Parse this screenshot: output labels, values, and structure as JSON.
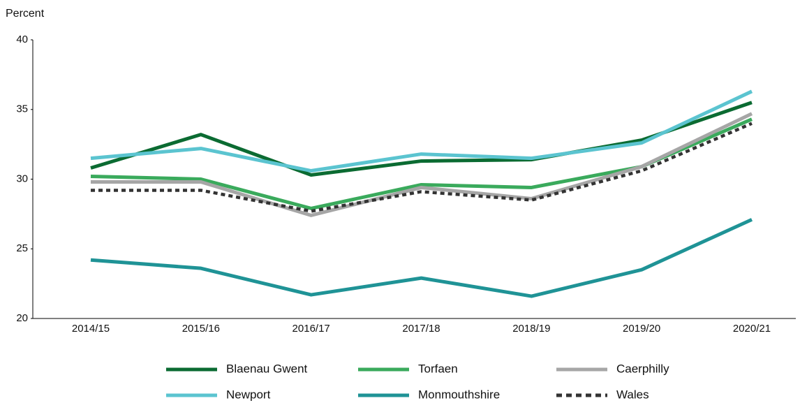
{
  "chart_data": {
    "type": "line",
    "y_label": "Percent",
    "categories": [
      "2014/15",
      "2015/16",
      "2016/17",
      "2017/18",
      "2018/19",
      "2019/20",
      "2020/21"
    ],
    "series": [
      {
        "name": "Blaenau Gwent",
        "color": "#0b6b32",
        "values": [
          30.8,
          33.2,
          30.3,
          31.3,
          31.4,
          32.8,
          35.5
        ]
      },
      {
        "name": "Torfaen",
        "color": "#3aaa5c",
        "values": [
          30.2,
          30.0,
          27.9,
          29.6,
          29.4,
          30.9,
          34.3
        ]
      },
      {
        "name": "Caerphilly",
        "color": "#a6a6a6",
        "values": [
          29.8,
          29.8,
          27.4,
          29.4,
          28.6,
          30.9,
          34.7
        ]
      },
      {
        "name": "Newport",
        "color": "#5bc4d0",
        "values": [
          31.5,
          32.2,
          30.6,
          31.8,
          31.5,
          32.6,
          36.3
        ]
      },
      {
        "name": "Monmouthshire",
        "color": "#1f9396",
        "values": [
          24.2,
          23.6,
          21.7,
          22.9,
          21.6,
          23.5,
          27.1
        ]
      },
      {
        "name": "Wales",
        "color": "#333333",
        "linestyle": "dashed",
        "values": [
          29.2,
          29.2,
          27.7,
          29.1,
          28.5,
          30.6,
          34.0
        ]
      }
    ],
    "ylim": [
      20,
      40
    ],
    "yticks": [
      20,
      25,
      30,
      35,
      40
    ],
    "grid": false
  }
}
